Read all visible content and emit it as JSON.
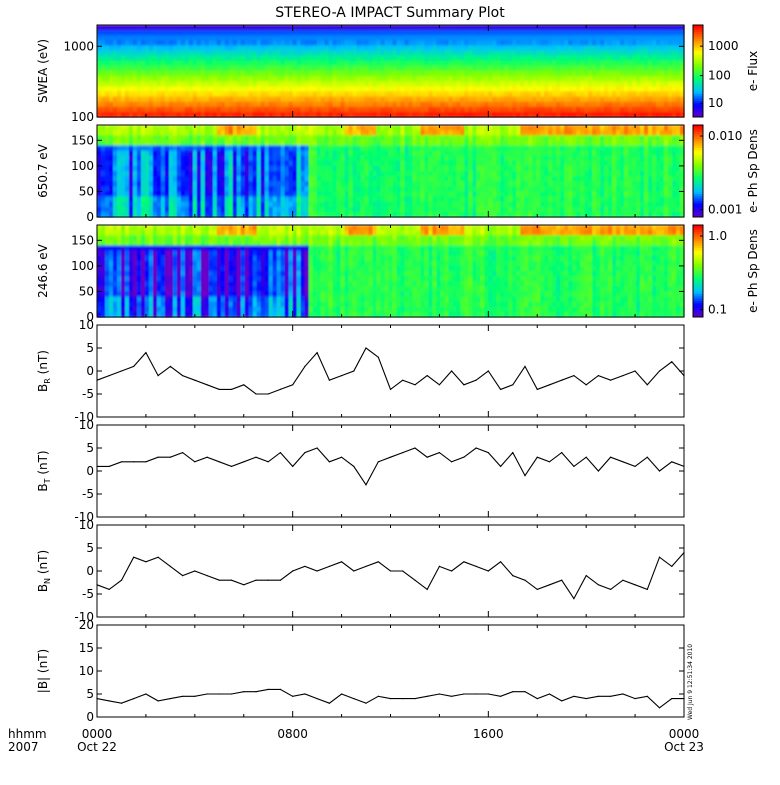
{
  "title": "STEREO-A IMPACT Summary Plot",
  "footer": {
    "left_top": "hhmm",
    "left_bottom": "2007",
    "ticks": [
      "0000",
      "0800",
      "1600",
      "0000"
    ],
    "dates": [
      "Oct 22",
      "Oct 23"
    ],
    "xrange_hours": [
      0,
      24
    ]
  },
  "timestamp": "Wed Jun  9 12:51:34 2010",
  "colors": {
    "colormap": [
      "#6a00c8",
      "#0000ff",
      "#00c0ff",
      "#00ff70",
      "#80ff00",
      "#ffff00",
      "#ff8000",
      "#ff0000"
    ]
  },
  "chart_data": [
    {
      "type": "heatmap",
      "ylabel": "SWEA (eV)",
      "yscale": "log",
      "ylim": [
        100,
        2000
      ],
      "yticks": [
        "1000",
        "100"
      ],
      "colorbar": {
        "label": "e- Flux",
        "scale": "log",
        "ticks": [
          "1000",
          "100",
          "10"
        ]
      }
    },
    {
      "type": "heatmap",
      "ylabel": "650.7 eV",
      "ylim": [
        0,
        180
      ],
      "yticks": [
        "150",
        "100",
        "50",
        "0"
      ],
      "colorbar": {
        "label": "e- Ph Sp Dens",
        "scale": "log",
        "ticks": [
          "0.010",
          "0.001"
        ]
      }
    },
    {
      "type": "heatmap",
      "ylabel": "246.6 eV",
      "ylim": [
        0,
        180
      ],
      "yticks": [
        "150",
        "100",
        "50",
        "0"
      ],
      "colorbar": {
        "label": "e- Ph Sp Dens",
        "scale": "log",
        "ticks": [
          "1.0",
          "0.1"
        ]
      }
    },
    {
      "type": "line",
      "ylabel_main": "B",
      "ylabel_sub": "R",
      "ylabel_unit": "(nT)",
      "ylim": [
        -10,
        10
      ],
      "yticks": [
        "10",
        "5",
        "0",
        "-5",
        "-10"
      ],
      "x": [
        0,
        0.5,
        1,
        1.5,
        2,
        2.5,
        3,
        3.5,
        4,
        4.5,
        5,
        5.5,
        6,
        6.5,
        7,
        7.5,
        8,
        8.5,
        9,
        9.5,
        10,
        10.5,
        11,
        11.5,
        12,
        12.5,
        13,
        13.5,
        14,
        14.5,
        15,
        15.5,
        16,
        16.5,
        17,
        17.5,
        18,
        18.5,
        19,
        19.5,
        20,
        20.5,
        21,
        21.5,
        22,
        22.5,
        23,
        23.5,
        24
      ],
      "y": [
        -2,
        -1,
        0,
        1,
        4,
        -1,
        1,
        -1,
        -2,
        -3,
        -4,
        -4,
        -3,
        -5,
        -5,
        -4,
        -3,
        1,
        4,
        -2,
        -1,
        0,
        5,
        3,
        -4,
        -2,
        -3,
        -1,
        -3,
        0,
        -3,
        -2,
        0,
        -4,
        -3,
        1,
        -4,
        -3,
        -2,
        -1,
        -3,
        -1,
        -2,
        -1,
        0,
        -3,
        0,
        2,
        -1
      ]
    },
    {
      "type": "line",
      "ylabel_main": "B",
      "ylabel_sub": "T",
      "ylabel_unit": "(nT)",
      "ylim": [
        -10,
        10
      ],
      "yticks": [
        "10",
        "5",
        "0",
        "-5",
        "-10"
      ],
      "x": [
        0,
        0.5,
        1,
        1.5,
        2,
        2.5,
        3,
        3.5,
        4,
        4.5,
        5,
        5.5,
        6,
        6.5,
        7,
        7.5,
        8,
        8.5,
        9,
        9.5,
        10,
        10.5,
        11,
        11.5,
        12,
        12.5,
        13,
        13.5,
        14,
        14.5,
        15,
        15.5,
        16,
        16.5,
        17,
        17.5,
        18,
        18.5,
        19,
        19.5,
        20,
        20.5,
        21,
        21.5,
        22,
        22.5,
        23,
        23.5,
        24
      ],
      "y": [
        1,
        1,
        2,
        2,
        2,
        3,
        3,
        4,
        2,
        3,
        2,
        1,
        2,
        3,
        2,
        4,
        1,
        4,
        5,
        2,
        3,
        1,
        -3,
        2,
        3,
        4,
        5,
        3,
        4,
        2,
        3,
        5,
        4,
        1,
        4,
        -1,
        3,
        2,
        4,
        1,
        3,
        0,
        3,
        2,
        1,
        3,
        0,
        2,
        1
      ]
    },
    {
      "type": "line",
      "ylabel_main": "B",
      "ylabel_sub": "N",
      "ylabel_unit": "(nT)",
      "ylim": [
        -10,
        10
      ],
      "yticks": [
        "10",
        "5",
        "0",
        "-5",
        "-10"
      ],
      "x": [
        0,
        0.5,
        1,
        1.5,
        2,
        2.5,
        3,
        3.5,
        4,
        4.5,
        5,
        5.5,
        6,
        6.5,
        7,
        7.5,
        8,
        8.5,
        9,
        9.5,
        10,
        10.5,
        11,
        11.5,
        12,
        12.5,
        13,
        13.5,
        14,
        14.5,
        15,
        15.5,
        16,
        16.5,
        17,
        17.5,
        18,
        18.5,
        19,
        19.5,
        20,
        20.5,
        21,
        21.5,
        22,
        22.5,
        23,
        23.5,
        24
      ],
      "y": [
        -3,
        -4,
        -2,
        3,
        2,
        3,
        1,
        -1,
        0,
        -1,
        -2,
        -2,
        -3,
        -2,
        -2,
        -2,
        0,
        1,
        0,
        1,
        2,
        0,
        1,
        2,
        0,
        0,
        -2,
        -4,
        1,
        0,
        2,
        1,
        0,
        2,
        -1,
        -2,
        -4,
        -3,
        -2,
        -6,
        -1,
        -3,
        -4,
        -2,
        -3,
        -4,
        3,
        1,
        4
      ]
    },
    {
      "type": "line",
      "ylabel_main": "|B|",
      "ylabel_sub": "",
      "ylabel_unit": "(nT)",
      "ylim": [
        0,
        20
      ],
      "yticks": [
        "20",
        "15",
        "10",
        "5",
        "0"
      ],
      "x": [
        0,
        0.5,
        1,
        1.5,
        2,
        2.5,
        3,
        3.5,
        4,
        4.5,
        5,
        5.5,
        6,
        6.5,
        7,
        7.5,
        8,
        8.5,
        9,
        9.5,
        10,
        10.5,
        11,
        11.5,
        12,
        12.5,
        13,
        13.5,
        14,
        14.5,
        15,
        15.5,
        16,
        16.5,
        17,
        17.5,
        18,
        18.5,
        19,
        19.5,
        20,
        20.5,
        21,
        21.5,
        22,
        22.5,
        23,
        23.5,
        24
      ],
      "y": [
        4,
        3.5,
        3,
        4,
        5,
        3.5,
        4,
        4.5,
        4.5,
        5,
        5,
        5,
        5.5,
        5.5,
        6,
        6,
        4.5,
        5,
        4,
        3,
        5,
        4,
        3,
        4.5,
        4,
        4,
        4,
        4.5,
        5,
        4.5,
        5,
        5,
        5,
        4.5,
        5.5,
        5.5,
        4,
        5,
        3.5,
        4.5,
        4,
        4.5,
        4.5,
        5,
        4,
        4.5,
        2,
        4,
        4
      ]
    }
  ]
}
